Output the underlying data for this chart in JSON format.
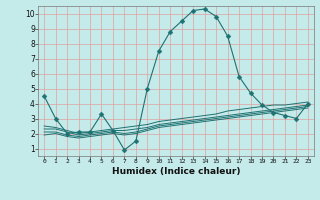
{
  "title": "",
  "xlabel": "Humidex (Indice chaleur)",
  "xlim": [
    -0.5,
    23.5
  ],
  "ylim": [
    0.5,
    10.5
  ],
  "yticks": [
    1,
    2,
    3,
    4,
    5,
    6,
    7,
    8,
    9,
    10
  ],
  "xticks": [
    0,
    1,
    2,
    3,
    4,
    5,
    6,
    7,
    8,
    9,
    10,
    11,
    12,
    13,
    14,
    15,
    16,
    17,
    18,
    19,
    20,
    21,
    22,
    23
  ],
  "bg_color": "#c5eaea",
  "line_color": "#1e7272",
  "grid_color": "#e0a0a0",
  "marker": "D",
  "lines": [
    {
      "x": [
        0,
        1,
        2,
        3,
        4,
        5,
        6,
        7,
        8,
        9,
        10,
        11,
        12,
        13,
        14,
        15,
        16,
        17,
        18,
        19,
        20,
        21,
        22,
        23
      ],
      "y": [
        4.5,
        3.0,
        2.0,
        2.1,
        2.1,
        3.3,
        2.2,
        0.9,
        1.5,
        5.0,
        7.5,
        8.8,
        9.5,
        10.2,
        10.3,
        9.8,
        8.5,
        5.8,
        4.7,
        3.9,
        3.4,
        3.2,
        3.0,
        4.0
      ],
      "marker": true
    },
    {
      "x": [
        0,
        1,
        2,
        3,
        4,
        5,
        6,
        7,
        8,
        9,
        10,
        11,
        12,
        13,
        14,
        15,
        16,
        17,
        18,
        19,
        20,
        21,
        22,
        23
      ],
      "y": [
        2.5,
        2.4,
        2.2,
        2.0,
        2.1,
        2.2,
        2.3,
        2.4,
        2.5,
        2.6,
        2.8,
        2.9,
        3.0,
        3.1,
        3.2,
        3.3,
        3.5,
        3.6,
        3.7,
        3.8,
        3.9,
        3.9,
        4.0,
        4.1
      ],
      "marker": false
    },
    {
      "x": [
        0,
        1,
        2,
        3,
        4,
        5,
        6,
        7,
        8,
        9,
        10,
        11,
        12,
        13,
        14,
        15,
        16,
        17,
        18,
        19,
        20,
        21,
        22,
        23
      ],
      "y": [
        2.3,
        2.3,
        2.1,
        1.9,
        2.0,
        2.1,
        2.2,
        2.2,
        2.3,
        2.4,
        2.6,
        2.7,
        2.8,
        2.9,
        3.0,
        3.1,
        3.2,
        3.3,
        3.4,
        3.5,
        3.6,
        3.7,
        3.8,
        3.9
      ],
      "marker": false
    },
    {
      "x": [
        0,
        1,
        2,
        3,
        4,
        5,
        6,
        7,
        8,
        9,
        10,
        11,
        12,
        13,
        14,
        15,
        16,
        17,
        18,
        19,
        20,
        21,
        22,
        23
      ],
      "y": [
        2.1,
        2.1,
        1.9,
        1.8,
        1.9,
        2.0,
        2.1,
        2.0,
        2.1,
        2.3,
        2.5,
        2.6,
        2.7,
        2.8,
        2.9,
        3.0,
        3.1,
        3.2,
        3.3,
        3.4,
        3.5,
        3.6,
        3.7,
        3.8
      ],
      "marker": false
    },
    {
      "x": [
        0,
        1,
        2,
        3,
        4,
        5,
        6,
        7,
        8,
        9,
        10,
        11,
        12,
        13,
        14,
        15,
        16,
        17,
        18,
        19,
        20,
        21,
        22,
        23
      ],
      "y": [
        1.9,
        2.0,
        1.8,
        1.7,
        1.8,
        1.9,
        2.0,
        1.9,
        2.0,
        2.2,
        2.4,
        2.5,
        2.6,
        2.7,
        2.8,
        2.9,
        3.0,
        3.1,
        3.2,
        3.3,
        3.4,
        3.5,
        3.6,
        3.7
      ],
      "marker": false
    }
  ]
}
